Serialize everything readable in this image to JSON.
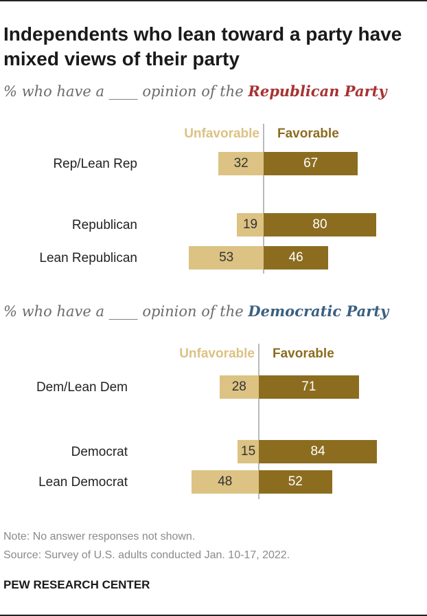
{
  "title": "Independents who lean toward a party have mixed views of their party",
  "chart_data": [
    {
      "type": "bar",
      "orientation": "horizontal-diverging",
      "subtitle_prefix": "% who have a ____ opinion of the",
      "party": "Republican Party",
      "party_color": "#a83232",
      "legend": {
        "unfavorable": "Unfavorable",
        "favorable": "Favorable"
      },
      "categories": [
        "Rep/Lean Rep",
        "Republican",
        "Lean Republican"
      ],
      "series": [
        {
          "name": "Unfavorable",
          "color": "#dcc283",
          "values": [
            32,
            19,
            53
          ]
        },
        {
          "name": "Favorable",
          "color": "#8c6d1f",
          "values": [
            67,
            80,
            46
          ]
        }
      ]
    },
    {
      "type": "bar",
      "orientation": "horizontal-diverging",
      "subtitle_prefix": "% who have a ____ opinion of the",
      "party": "Democratic Party",
      "party_color": "#3b5f80",
      "legend": {
        "unfavorable": "Unfavorable",
        "favorable": "Favorable"
      },
      "categories": [
        "Dem/Lean Dem",
        "Democrat",
        "Lean Democrat"
      ],
      "series": [
        {
          "name": "Unfavorable",
          "color": "#dcc283",
          "values": [
            28,
            15,
            48
          ]
        },
        {
          "name": "Favorable",
          "color": "#8c6d1f",
          "values": [
            71,
            84,
            52
          ]
        }
      ]
    }
  ],
  "note": "Note: No answer responses not shown.",
  "source": "Source: Survey of U.S. adults conducted Jan. 10-17, 2022.",
  "organization": "PEW RESEARCH CENTER"
}
